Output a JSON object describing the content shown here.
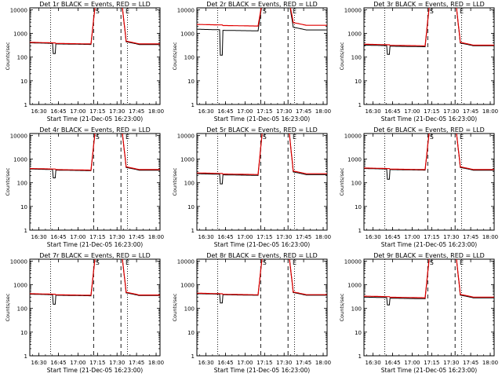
{
  "chart_data": [
    {
      "type": "line",
      "title": "Det 1r BLACK = Events, RED = LLD",
      "xlabel": "Start Time (21-Dec-05 16:23:00)",
      "ylabel": "Counts/sec",
      "ylog": true,
      "ylim": [
        1,
        12000
      ],
      "xlim": [
        "16:23",
        "18:03"
      ],
      "xticks": [
        "16:30",
        "16:45",
        "17:00",
        "17:15",
        "17:30",
        "17:45",
        "18:00"
      ],
      "yticks": [
        "1",
        "10",
        "100",
        "1000",
        "10000"
      ],
      "markers": [
        "S",
        "E"
      ],
      "black_base": 400,
      "black_dip": 140,
      "red_base": 420,
      "black_post": 340,
      "red_post": 360
    },
    {
      "type": "line",
      "title": "Det 2r BLACK = Events, RED = LLD",
      "xlabel": "Start Time (21-Dec-05 16:23:00)",
      "ylabel": "Counts/sec",
      "ylog": true,
      "ylim": [
        1,
        12000
      ],
      "xlim": [
        "16:23",
        "18:03"
      ],
      "xticks": [
        "16:30",
        "16:45",
        "17:00",
        "17:15",
        "17:30",
        "17:45",
        "18:00"
      ],
      "yticks": [
        "1",
        "10",
        "100",
        "1000",
        "10000"
      ],
      "markers": [
        "S",
        "E"
      ],
      "black_base": 1500,
      "black_dip": 120,
      "red_base": 2400,
      "black_post": 1400,
      "red_post": 2200
    },
    {
      "type": "line",
      "title": "Det 3r BLACK = Events, RED = LLD",
      "xlabel": "Start Time (21-Dec-05 16:23:00)",
      "ylabel": "Counts/sec",
      "ylog": true,
      "ylim": [
        1,
        12000
      ],
      "xlim": [
        "16:23",
        "18:03"
      ],
      "xticks": [
        "16:30",
        "16:45",
        "17:00",
        "17:15",
        "17:30",
        "17:45",
        "18:00"
      ],
      "yticks": [
        "1",
        "10",
        "100",
        "1000",
        "10000"
      ],
      "markers": [
        "S",
        "E"
      ],
      "black_base": 320,
      "black_dip": 130,
      "red_base": 350,
      "black_post": 300,
      "red_post": 320
    },
    {
      "type": "line",
      "title": "Det 4r BLACK = Events, RED = LLD",
      "xlabel": "Start Time (21-Dec-05 16:23:00)",
      "ylabel": "Counts/sec",
      "ylog": true,
      "ylim": [
        1,
        12000
      ],
      "xlim": [
        "16:23",
        "18:03"
      ],
      "xticks": [
        "16:30",
        "16:45",
        "17:00",
        "17:15",
        "17:30",
        "17:45",
        "18:00"
      ],
      "yticks": [
        "1",
        "10",
        "100",
        "1000",
        "10000"
      ],
      "markers": [
        "S",
        "E"
      ],
      "black_base": 380,
      "black_dip": 160,
      "red_base": 400,
      "black_post": 340,
      "red_post": 360
    },
    {
      "type": "line",
      "title": "Det 5r BLACK = Events, RED = LLD",
      "xlabel": "Start Time (21-Dec-05 16:23:00)",
      "ylabel": "Counts/sec",
      "ylog": true,
      "ylim": [
        1,
        12000
      ],
      "xlim": [
        "16:23",
        "18:03"
      ],
      "xticks": [
        "16:30",
        "16:45",
        "17:00",
        "17:15",
        "17:30",
        "17:45",
        "18:00"
      ],
      "yticks": [
        "1",
        "10",
        "100",
        "1000",
        "10000"
      ],
      "markers": [
        "S",
        "E"
      ],
      "black_base": 240,
      "black_dip": 90,
      "red_base": 260,
      "black_post": 220,
      "red_post": 240
    },
    {
      "type": "line",
      "title": "Det 6r BLACK = Events, RED = LLD",
      "xlabel": "Start Time (21-Dec-05 16:23:00)",
      "ylabel": "Counts/sec",
      "ylog": true,
      "ylim": [
        1,
        12000
      ],
      "xlim": [
        "16:23",
        "18:03"
      ],
      "xticks": [
        "16:30",
        "16:45",
        "17:00",
        "17:15",
        "17:30",
        "17:45",
        "18:00"
      ],
      "yticks": [
        "1",
        "10",
        "100",
        "1000",
        "10000"
      ],
      "markers": [
        "S",
        "E"
      ],
      "black_base": 400,
      "black_dip": 140,
      "red_base": 420,
      "black_post": 340,
      "red_post": 360
    },
    {
      "type": "line",
      "title": "Det 7r BLACK = Events, RED = LLD",
      "xlabel": "Start Time (21-Dec-05 16:23:00)",
      "ylabel": "Counts/sec",
      "ylog": true,
      "ylim": [
        1,
        12000
      ],
      "xlim": [
        "16:23",
        "18:03"
      ],
      "xticks": [
        "16:30",
        "16:45",
        "17:00",
        "17:15",
        "17:30",
        "17:45",
        "18:00"
      ],
      "yticks": [
        "1",
        "10",
        "100",
        "1000",
        "10000"
      ],
      "markers": [
        "S",
        "E"
      ],
      "black_base": 400,
      "black_dip": 150,
      "red_base": 420,
      "black_post": 350,
      "red_post": 370
    },
    {
      "type": "line",
      "title": "Det 8r BLACK = Events, RED = LLD",
      "xlabel": "Start Time (21-Dec-05 16:23:00)",
      "ylabel": "Counts/sec",
      "ylog": true,
      "ylim": [
        1,
        12000
      ],
      "xlim": [
        "16:23",
        "18:03"
      ],
      "xticks": [
        "16:30",
        "16:45",
        "17:00",
        "17:15",
        "17:30",
        "17:45",
        "18:00"
      ],
      "yticks": [
        "1",
        "10",
        "100",
        "1000",
        "10000"
      ],
      "markers": [
        "S",
        "E"
      ],
      "black_base": 420,
      "black_dip": 170,
      "red_base": 440,
      "black_post": 360,
      "red_post": 380
    },
    {
      "type": "line",
      "title": "Det 9r BLACK = Events, RED = LLD",
      "xlabel": "Start Time (21-Dec-05 16:23:00)",
      "ylabel": "Counts/sec",
      "ylog": true,
      "ylim": [
        1,
        12000
      ],
      "xlim": [
        "16:23",
        "18:03"
      ],
      "xticks": [
        "16:30",
        "16:45",
        "17:00",
        "17:15",
        "17:30",
        "17:45",
        "18:00"
      ],
      "yticks": [
        "1",
        "10",
        "100",
        "1000",
        "10000"
      ],
      "markers": [
        "S",
        "E"
      ],
      "black_base": 300,
      "black_dip": 140,
      "red_base": 330,
      "black_post": 280,
      "red_post": 300
    }
  ],
  "colors": {
    "events": "#000000",
    "lld": "#e00000"
  }
}
